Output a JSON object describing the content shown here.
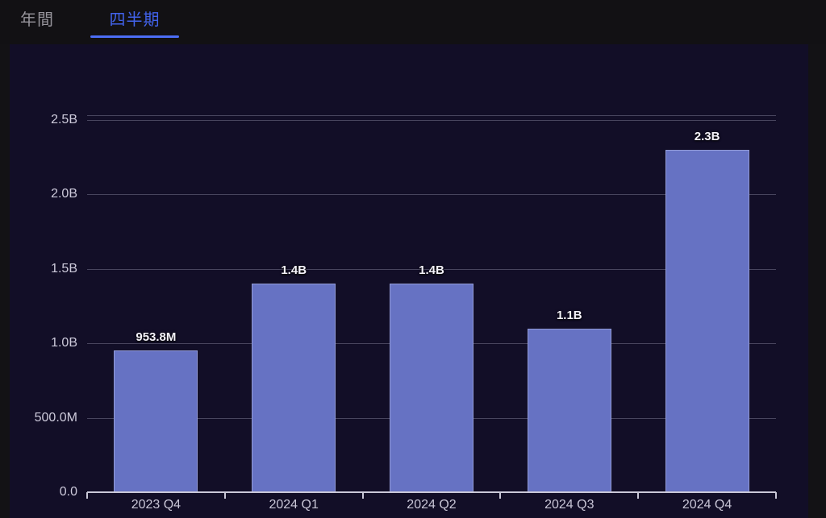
{
  "tab_bar": {
    "tabs": [
      {
        "label": "年間",
        "active": false
      },
      {
        "label": "四半期",
        "active": true
      }
    ]
  },
  "colors": {
    "page_bg": "#131215",
    "panel_bg": "#120e27",
    "active_tab": "#4263eb",
    "tab_underline": "#4c6ef5",
    "inactive_tab": "#97959c",
    "bar_fill": "#6672c3",
    "bar_border": "#939cd8",
    "gridline": "#48455e",
    "axis": "#cac8d8",
    "tick_label": "#cdcadb",
    "bar_label": "#f4f2fa"
  },
  "chart_data": {
    "type": "bar",
    "title": "",
    "categories": [
      "2023 Q4",
      "2024 Q1",
      "2024 Q2",
      "2024 Q3",
      "2024 Q4"
    ],
    "values": [
      953800000,
      1400000000,
      1400000000,
      1100000000,
      2300000000
    ],
    "bar_labels": [
      "953.8M",
      "1.4B",
      "1.4B",
      "1.1B",
      "2.3B"
    ],
    "xlabel": "",
    "ylabel": "",
    "y_axis": {
      "max": 2500000000,
      "ticks": [
        {
          "value": 0,
          "label": "0.0"
        },
        {
          "value": 500000000,
          "label": "500.0M"
        },
        {
          "value": 1000000000,
          "label": "1.0B"
        },
        {
          "value": 1500000000,
          "label": "1.5B"
        },
        {
          "value": 2000000000,
          "label": "2.0B"
        },
        {
          "value": 2500000000,
          "label": "2.5B"
        }
      ]
    },
    "grid": true,
    "legend": false
  }
}
